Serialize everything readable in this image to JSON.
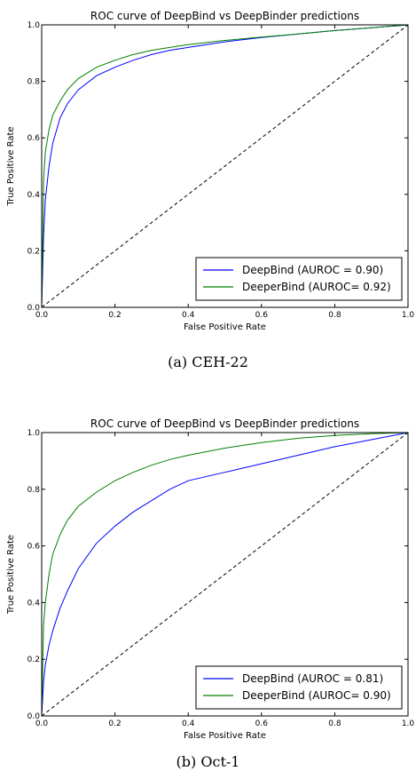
{
  "chart_data": [
    {
      "type": "line",
      "title": "ROC curve of DeepBind vs DeepBinder predictions",
      "xlabel": "False Positive Rate",
      "ylabel": "True Positive Rate",
      "xlim": [
        0.0,
        1.0
      ],
      "ylim": [
        0.0,
        1.0
      ],
      "xticks": [
        "0.0",
        "0.2",
        "0.4",
        "0.6",
        "0.8",
        "1.0"
      ],
      "yticks": [
        "0.0",
        "0.2",
        "0.4",
        "0.6",
        "0.8",
        "1.0"
      ],
      "grid": false,
      "legend_position": "bottom-right",
      "caption": "(a) CEH-22",
      "series": [
        {
          "name": "DeepBind (AUROC = 0.90)",
          "color": "#0000ff",
          "x": [
            0.0,
            0.005,
            0.01,
            0.02,
            0.03,
            0.05,
            0.07,
            0.1,
            0.15,
            0.2,
            0.25,
            0.3,
            0.35,
            0.4,
            0.5,
            0.6,
            0.7,
            0.8,
            0.9,
            1.0
          ],
          "y": [
            0.0,
            0.25,
            0.38,
            0.5,
            0.58,
            0.67,
            0.72,
            0.77,
            0.82,
            0.85,
            0.875,
            0.895,
            0.91,
            0.92,
            0.94,
            0.955,
            0.968,
            0.98,
            0.99,
            1.0
          ]
        },
        {
          "name": "DeeperBind (AUROC= 0.92)",
          "color": "#008000",
          "x": [
            0.0,
            0.005,
            0.01,
            0.02,
            0.03,
            0.05,
            0.07,
            0.1,
            0.15,
            0.2,
            0.25,
            0.3,
            0.35,
            0.4,
            0.5,
            0.6,
            0.7,
            0.8,
            0.9,
            1.0
          ],
          "y": [
            0.0,
            0.45,
            0.55,
            0.63,
            0.68,
            0.73,
            0.77,
            0.81,
            0.85,
            0.875,
            0.895,
            0.91,
            0.92,
            0.93,
            0.945,
            0.957,
            0.968,
            0.98,
            0.99,
            1.0
          ]
        },
        {
          "name": "",
          "color": "#000000",
          "dashed": true,
          "x": [
            0.0,
            1.0
          ],
          "y": [
            0.0,
            1.0
          ]
        }
      ]
    },
    {
      "type": "line",
      "title": "ROC curve of DeepBind vs DeepBinder predictions",
      "xlabel": "False Positive Rate",
      "ylabel": "True Positive Rate",
      "xlim": [
        0.0,
        1.0
      ],
      "ylim": [
        0.0,
        1.0
      ],
      "xticks": [
        "0.0",
        "0.2",
        "0.4",
        "0.6",
        "0.8",
        "1.0"
      ],
      "yticks": [
        "0.0",
        "0.2",
        "0.4",
        "0.6",
        "0.8",
        "1.0"
      ],
      "grid": false,
      "legend_position": "bottom-right",
      "caption": "(b) Oct-1",
      "series": [
        {
          "name": "DeepBind (AUROC = 0.81)",
          "color": "#0000ff",
          "x": [
            0.0,
            0.005,
            0.01,
            0.02,
            0.03,
            0.05,
            0.07,
            0.1,
            0.15,
            0.2,
            0.25,
            0.3,
            0.35,
            0.4,
            0.5,
            0.6,
            0.7,
            0.8,
            0.9,
            1.0
          ],
          "y": [
            0.0,
            0.12,
            0.18,
            0.25,
            0.3,
            0.38,
            0.44,
            0.52,
            0.61,
            0.67,
            0.72,
            0.76,
            0.8,
            0.83,
            0.86,
            0.89,
            0.92,
            0.95,
            0.975,
            1.0
          ]
        },
        {
          "name": "DeeperBind (AUROC= 0.90)",
          "color": "#008000",
          "x": [
            0.0,
            0.005,
            0.01,
            0.02,
            0.03,
            0.05,
            0.07,
            0.1,
            0.15,
            0.2,
            0.25,
            0.3,
            0.35,
            0.4,
            0.5,
            0.6,
            0.7,
            0.8,
            0.9,
            1.0
          ],
          "y": [
            0.0,
            0.32,
            0.4,
            0.5,
            0.57,
            0.64,
            0.69,
            0.74,
            0.79,
            0.83,
            0.86,
            0.885,
            0.905,
            0.92,
            0.945,
            0.965,
            0.98,
            0.99,
            0.996,
            1.0
          ]
        },
        {
          "name": "",
          "color": "#000000",
          "dashed": true,
          "x": [
            0.0,
            1.0
          ],
          "y": [
            0.0,
            1.0
          ]
        }
      ]
    }
  ]
}
